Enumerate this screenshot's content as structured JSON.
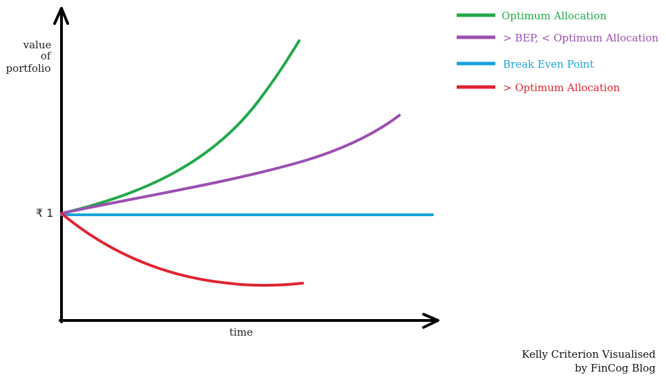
{
  "y_axis_label": [
    "value",
    "of",
    "portfolio"
  ],
  "x_axis_label": "time",
  "start_value_label": "₹ 1",
  "credit": [
    "Kelly Criterion Visualised",
    "by FinCog Blog"
  ],
  "legend": [
    {
      "label": "Optimum Allocation",
      "color": "#22a84a"
    },
    {
      "label": "> BEP, < Optimum Allocation",
      "color": "#9b4fb0"
    },
    {
      "label": "Break Even Point",
      "color": "#1aa3db"
    },
    {
      "label": "> Optimum Allocation",
      "color": "#e02430"
    }
  ],
  "axis_color": "#000000"
}
